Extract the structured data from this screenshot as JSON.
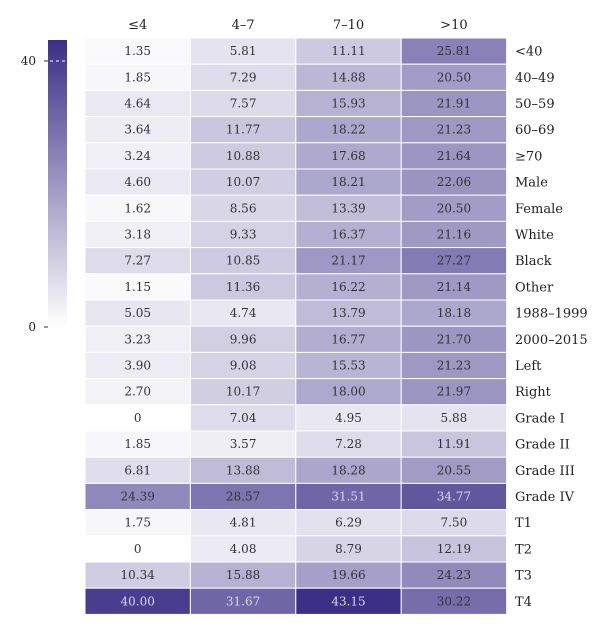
{
  "chart_data": {
    "type": "heatmap",
    "columns": [
      "≤4",
      "4–7",
      "7–10",
      ">10"
    ],
    "rows": [
      "<40",
      "40–49",
      "50–59",
      "60–69",
      "≥70",
      "Male",
      "Female",
      "White",
      "Black",
      "Other",
      "1988–1999",
      "2000–2015",
      "Left",
      "Right",
      "Grade I",
      "Grade II",
      "Grade III",
      "Grade IV",
      "T1",
      "T2",
      "T3",
      "T4"
    ],
    "cell_labels": [
      [
        "1.35",
        "5.81",
        "11.11",
        "25.81"
      ],
      [
        "1.85",
        "7.29",
        "14.88",
        "20.50"
      ],
      [
        "4.64",
        "7.57",
        "15.93",
        "21.91"
      ],
      [
        "3.64",
        "11.77",
        "18.22",
        "21.23"
      ],
      [
        "3.24",
        "10.88",
        "17.68",
        "21.64"
      ],
      [
        "4.60",
        "10.07",
        "18.21",
        "22.06"
      ],
      [
        "1.62",
        "8.56",
        "13.39",
        "20.50"
      ],
      [
        "3.18",
        "9.33",
        "16.37",
        "21.16"
      ],
      [
        "7.27",
        "10.85",
        "21.17",
        "27.27"
      ],
      [
        "1.15",
        "11.36",
        "16.22",
        "21.14"
      ],
      [
        "5.05",
        "4.74",
        "13.79",
        "18.18"
      ],
      [
        "3.23",
        "9.96",
        "16.77",
        "21.70"
      ],
      [
        "3.90",
        "9.08",
        "15.53",
        "21.23"
      ],
      [
        "2.70",
        "10.17",
        "18.00",
        "21.97"
      ],
      [
        "0",
        "7.04",
        "4.95",
        "5.88"
      ],
      [
        "1.85",
        "3.57",
        "7.28",
        "11.91"
      ],
      [
        "6.81",
        "13.88",
        "18.28",
        "20.55"
      ],
      [
        "24.39",
        "28.57",
        "31.51",
        "34.77"
      ],
      [
        "1.75",
        "4.81",
        "6.29",
        "7.50"
      ],
      [
        "0",
        "4.08",
        "8.79",
        "12.19"
      ],
      [
        "10.34",
        "15.88",
        "19.66",
        "24.23"
      ],
      [
        "40.00",
        "31.67",
        "43.15",
        "30.22"
      ]
    ],
    "values": [
      [
        1.35,
        5.81,
        11.11,
        25.81
      ],
      [
        1.85,
        7.29,
        14.88,
        20.5
      ],
      [
        4.64,
        7.57,
        15.93,
        21.91
      ],
      [
        3.64,
        11.77,
        18.22,
        21.23
      ],
      [
        3.24,
        10.88,
        17.68,
        21.64
      ],
      [
        4.6,
        10.07,
        18.21,
        22.06
      ],
      [
        1.62,
        8.56,
        13.39,
        20.5
      ],
      [
        3.18,
        9.33,
        16.37,
        21.16
      ],
      [
        7.27,
        10.85,
        21.17,
        27.27
      ],
      [
        1.15,
        11.36,
        16.22,
        21.14
      ],
      [
        5.05,
        4.74,
        13.79,
        18.18
      ],
      [
        3.23,
        9.96,
        16.77,
        21.7
      ],
      [
        3.9,
        9.08,
        15.53,
        21.23
      ],
      [
        2.7,
        10.17,
        18.0,
        21.97
      ],
      [
        0,
        7.04,
        4.95,
        5.88
      ],
      [
        1.85,
        3.57,
        7.28,
        11.91
      ],
      [
        6.81,
        13.88,
        18.28,
        20.55
      ],
      [
        24.39,
        28.57,
        31.51,
        34.77
      ],
      [
        1.75,
        4.81,
        6.29,
        7.5
      ],
      [
        0,
        4.08,
        8.79,
        12.19
      ],
      [
        10.34,
        15.88,
        19.66,
        24.23
      ],
      [
        40.0,
        31.67,
        43.15,
        30.22
      ]
    ],
    "colorbar": {
      "min": 0,
      "max": 43.15,
      "ticks": [
        0,
        40
      ],
      "colors": {
        "low": "#ffffff",
        "high": "#3b2e86"
      }
    },
    "colors": {
      "text_dark": "#333333",
      "text_light": "#d9d6ee"
    }
  }
}
